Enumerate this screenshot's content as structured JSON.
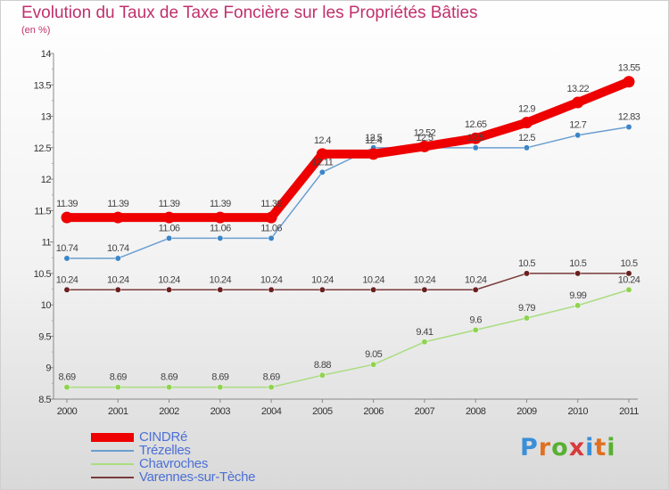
{
  "title": "Evolution du Taux de Taxe Foncière sur les Propriétés Bâties",
  "unit": "(en %)",
  "logo": "Proxiti",
  "colors": {
    "title": "#c0306c",
    "legend_text": "#4c6fd6"
  },
  "chart_data": {
    "type": "line",
    "title": "Evolution du Taux de Taxe Foncière sur les Propriétés Bâties",
    "ylabel": "(en %)",
    "xlabel": "",
    "x": [
      "2000",
      "2001",
      "2002",
      "2003",
      "2004",
      "2005",
      "2006",
      "2007",
      "2008",
      "2009",
      "2010",
      "2011"
    ],
    "y_ticks": [
      "8.5",
      "9",
      "9.5",
      "10",
      "10.5",
      "11",
      "11.5",
      "12",
      "12.5",
      "13",
      "13.5",
      "14"
    ],
    "ylim": [
      8.5,
      14
    ],
    "grid": false,
    "legend_position": "bottom-left",
    "series": [
      {
        "name": "CINDRé",
        "color": "#ee0000",
        "values": [
          11.39,
          11.39,
          11.39,
          11.39,
          11.39,
          12.4,
          12.4,
          12.52,
          12.65,
          12.9,
          13.22,
          13.55
        ],
        "labels": [
          "11.39",
          "11.39",
          "11.39",
          "11.39",
          "11.39",
          "12.4",
          "12.4",
          "12.52",
          "12.65",
          "12.9",
          "13.22",
          "13.55"
        ]
      },
      {
        "name": "Trézelles",
        "color": "#6a9ed0",
        "values": [
          10.74,
          10.74,
          11.06,
          11.06,
          11.06,
          12.11,
          12.5,
          12.5,
          12.5,
          12.5,
          12.7,
          12.83
        ],
        "labels": [
          "10.74",
          "10.74",
          "11.06",
          "11.06",
          "11.06",
          "12.11",
          "12.5",
          "12.5",
          "12.5",
          "12.5",
          "12.7",
          "12.83"
        ]
      },
      {
        "name": "Chavroches",
        "color": "#a9dd80",
        "values": [
          8.69,
          8.69,
          8.69,
          8.69,
          8.69,
          8.88,
          9.05,
          9.41,
          9.6,
          9.79,
          9.99,
          10.24
        ],
        "labels": [
          "8.69",
          "8.69",
          "8.69",
          "8.69",
          "8.69",
          "8.88",
          "9.05",
          "9.41",
          "9.6",
          "9.79",
          "9.99",
          "10.24"
        ]
      },
      {
        "name": "Varennes-sur-Tèche",
        "color": "#7a3a3a",
        "values": [
          10.24,
          10.24,
          10.24,
          10.24,
          10.24,
          10.24,
          10.24,
          10.24,
          10.24,
          10.5,
          10.5,
          10.5
        ],
        "labels": [
          "10.24",
          "10.24",
          "10.24",
          "10.24",
          "10.24",
          "10.24",
          "10.24",
          "10.24",
          "10.24",
          "10.5",
          "10.5",
          "10.5"
        ]
      }
    ]
  }
}
